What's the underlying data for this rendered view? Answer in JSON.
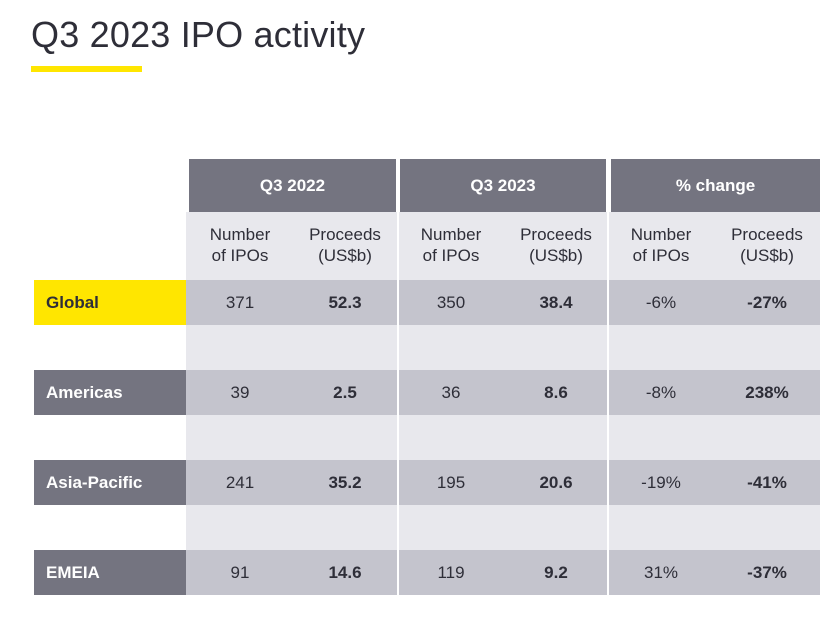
{
  "title": "Q3 2023 IPO activity",
  "accent_color": "#ffe600",
  "header_color": "#747480",
  "groups": [
    "Q3 2022",
    "Q3 2023",
    "% change"
  ],
  "subheaders": [
    {
      "line1": "Number",
      "line2": "of IPOs"
    },
    {
      "line1": "Proceeds",
      "line2": "(US$b)"
    },
    {
      "line1": "Number",
      "line2": "of IPOs"
    },
    {
      "line1": "Proceeds",
      "line2": "(US$b)"
    },
    {
      "line1": "Number",
      "line2": "of IPOs"
    },
    {
      "line1": "Proceeds",
      "line2": "(US$b)"
    }
  ],
  "rows": [
    {
      "region": "Global",
      "values": [
        "371",
        "52.3",
        "350",
        "38.4",
        "-6%",
        "-27%"
      ]
    },
    {
      "region": "Americas",
      "values": [
        "39",
        "2.5",
        "36",
        "8.6",
        "-8%",
        "238%"
      ]
    },
    {
      "region": "Asia-Pacific",
      "values": [
        "241",
        "35.2",
        "195",
        "20.6",
        "-19%",
        "-41%"
      ]
    },
    {
      "region": "EMEIA",
      "values": [
        "91",
        "14.6",
        "119",
        "9.2",
        "31%",
        "-37%"
      ]
    }
  ]
}
